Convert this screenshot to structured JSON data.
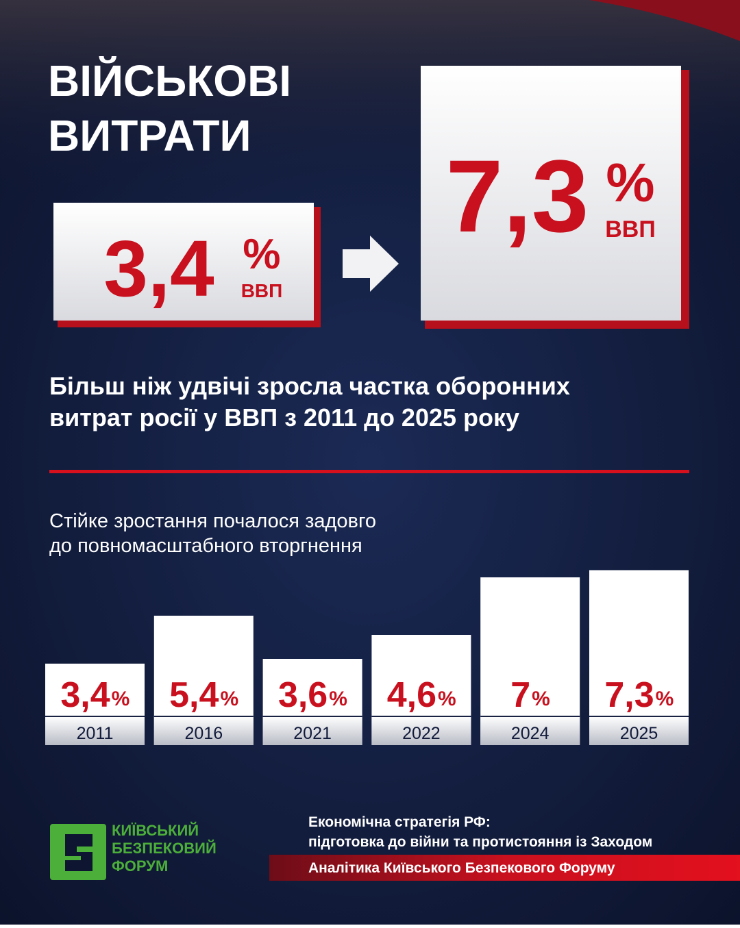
{
  "header": {
    "title_lines": [
      "ВІЙСЬКОВІ",
      "ВИТРАТИ"
    ]
  },
  "stats": {
    "from": {
      "number": "3,4",
      "unit": "%",
      "label": "ВВП"
    },
    "to": {
      "number": "7,3",
      "unit": "%",
      "label": "ВВП"
    }
  },
  "headline_lines": [
    "Більш ніж удвічі зросла частка оборонних",
    "витрат росії у ВВП з 2011 до 2025 року"
  ],
  "chart_data": {
    "type": "bar",
    "title_lines": [
      "Стійке зростання почалося задовго",
      "до повномасштабного вторгнення"
    ],
    "categories": [
      "2011",
      "2016",
      "2021",
      "2022",
      "2024",
      "2025"
    ],
    "values": [
      3.4,
      5.4,
      3.6,
      4.6,
      7,
      7.3
    ],
    "value_labels": [
      "3,4",
      "5,4",
      "3,6",
      "4,6",
      "7",
      "7,3"
    ],
    "unit": "%",
    "color": "#ffffff",
    "label_color": "#c8101e"
  },
  "logo": {
    "lines": [
      "КИЇВСЬКИЙ",
      "БЕЗПЕКОВИЙ",
      "ФОРУМ"
    ]
  },
  "source": {
    "lines": [
      "Економічна стратегія РФ:",
      "підготовка до війни та протистояння із Заходом"
    ],
    "credit": "Аналітика Київського Безпекового Форуму"
  }
}
